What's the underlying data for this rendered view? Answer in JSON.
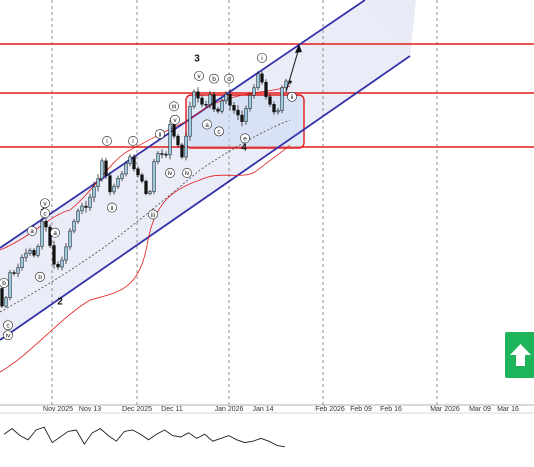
{
  "chart_data": {
    "type": "candlestick",
    "x_tick_labels": [
      "Nov 2025",
      "Nov 13",
      "Dec 2025",
      "Dec 11",
      "Jan 2026",
      "Jan 14",
      "Feb 2026",
      "Feb 09",
      "Feb 16",
      "Mar 2026",
      "Mar 09",
      "Mar 16"
    ],
    "major_wave_labels": [
      {
        "text": "1",
        "bar": 43
      },
      {
        "text": "2",
        "bar": 60
      },
      {
        "text": "3",
        "bar": 197
      },
      {
        "text": "4",
        "bar": 244
      }
    ],
    "sub_wave_labels": [
      {
        "text": "v",
        "bar": 45,
        "pos": "top"
      },
      {
        "text": "c",
        "bar": 45,
        "pos": "top2"
      },
      {
        "text": "a",
        "bar": 32,
        "pos": "top"
      },
      {
        "text": "b",
        "bar": 4,
        "pos": "top"
      },
      {
        "text": "b",
        "bar": 40,
        "pos": "bottom"
      },
      {
        "text": "c",
        "bar": 8,
        "pos": "bottom"
      },
      {
        "text": "iv",
        "bar": 8,
        "pos": "bottom2"
      },
      {
        "text": "a",
        "bar": 55,
        "pos": "top"
      },
      {
        "text": "i",
        "bar": 107,
        "pos": "top"
      },
      {
        "text": "ii",
        "bar": 112,
        "pos": "bottom"
      },
      {
        "text": "i",
        "bar": 133,
        "pos": "top"
      },
      {
        "text": "iii",
        "bar": 153,
        "pos": "bottom"
      },
      {
        "text": "ii",
        "bar": 160,
        "pos": "top"
      },
      {
        "text": "iii",
        "bar": 174,
        "pos": "top"
      },
      {
        "text": "v",
        "bar": 175,
        "pos": "top2"
      },
      {
        "text": "iv",
        "bar": 170,
        "pos": "bottom"
      },
      {
        "text": "iv",
        "bar": 187,
        "pos": "bottom"
      },
      {
        "text": "v",
        "bar": 199,
        "pos": "top"
      },
      {
        "text": "b",
        "bar": 214,
        "pos": "top"
      },
      {
        "text": "d",
        "bar": 229,
        "pos": "top"
      },
      {
        "text": "a",
        "bar": 207,
        "pos": "bottom"
      },
      {
        "text": "c",
        "bar": 219,
        "pos": "bottom"
      },
      {
        "text": "e",
        "bar": 245,
        "pos": "bottom"
      },
      {
        "text": "i",
        "bar": 262,
        "pos": "top"
      },
      {
        "text": "ii",
        "bar": 292,
        "pos": "bottom"
      }
    ],
    "candles": [
      {
        "o": 1500.0,
        "h": 1508.0,
        "l": 1490.0,
        "c": 1495.0
      },
      {
        "o": 1495.0,
        "h": 1502.0,
        "l": 1484.0,
        "c": 1488.0
      },
      {
        "o": 1488.0,
        "h": 1513.0,
        "l": 1485.0,
        "c": 1510.0
      },
      {
        "o": 1510.0,
        "h": 1530.0,
        "l": 1505.0,
        "c": 1522.0
      },
      {
        "o": 1522.0,
        "h": 1532.0,
        "l": 1490.0,
        "c": 1495.0
      },
      {
        "o": 1495.0,
        "h": 1500.0,
        "l": 1470.0,
        "c": 1476.0
      },
      {
        "o": 1476.0,
        "h": 1520.0,
        "l": 1473.0,
        "c": 1514.0
      },
      {
        "o": 1514.0,
        "h": 1535.0,
        "l": 1508.0,
        "c": 1528.0
      },
      {
        "o": 1528.0,
        "h": 1544.0,
        "l": 1520.0,
        "c": 1538.0
      },
      {
        "o": 1538.0,
        "h": 1552.0,
        "l": 1530.0,
        "c": 1546.0
      },
      {
        "o": 1546.0,
        "h": 1560.0,
        "l": 1525.0,
        "c": 1530.0
      },
      {
        "o": 1530.0,
        "h": 1575.0,
        "l": 1528.0,
        "c": 1570.0
      },
      {
        "o": 1570.0,
        "h": 1586.0,
        "l": 1560.0,
        "c": 1580.0
      },
      {
        "o": 1580.0,
        "h": 1588.0,
        "l": 1540.0,
        "c": 1546.0
      },
      {
        "o": 1546.0,
        "h": 1565.0,
        "l": 1535.0,
        "c": 1560.0
      },
      {
        "o": 1560.0,
        "h": 1575.0,
        "l": 1540.0,
        "c": 1548.0
      },
      {
        "o": 1548.0,
        "h": 1585.0,
        "l": 1545.0,
        "c": 1580.0
      },
      {
        "o": 1580.0,
        "h": 1600.0,
        "l": 1570.0,
        "c": 1595.0
      },
      {
        "o": 1595.0,
        "h": 1614.0,
        "l": 1590.0,
        "c": 1608.0
      },
      {
        "o": 1608.0,
        "h": 1625.0,
        "l": 1600.0,
        "c": 1620.0
      },
      {
        "o": 1620.0,
        "h": 1634.0,
        "l": 1600.0,
        "c": 1606.0
      },
      {
        "o": 1606.0,
        "h": 1610.0,
        "l": 1555.0,
        "c": 1560.0
      },
      {
        "o": 1560.0,
        "h": 1570.0,
        "l": 1535.0,
        "c": 1542.0
      },
      {
        "o": 1542.0,
        "h": 1590.0,
        "l": 1538.0,
        "c": 1584.0
      },
      {
        "o": 1584.0,
        "h": 1628.0,
        "l": 1580.0,
        "c": 1622.0
      },
      {
        "o": 1622.0,
        "h": 1650.0,
        "l": 1618.0,
        "c": 1645.0
      },
      {
        "o": 1645.0,
        "h": 1672.0,
        "l": 1640.0,
        "c": 1666.0
      },
      {
        "o": 1666.0,
        "h": 1696.0,
        "l": 1660.0,
        "c": 1690.0
      },
      {
        "o": 1690.0,
        "h": 1708.0,
        "l": 1680.0,
        "c": 1700.0
      },
      {
        "o": 1700.0,
        "h": 1718.0,
        "l": 1690.0,
        "c": 1710.0
      },
      {
        "o": 1710.0,
        "h": 1730.0,
        "l": 1700.0,
        "c": 1722.0
      },
      {
        "o": 1722.0,
        "h": 1745.0,
        "l": 1718.0,
        "c": 1740.0
      },
      {
        "o": 1740.0,
        "h": 1760.0,
        "l": 1730.0,
        "c": 1754.0
      },
      {
        "o": 1754.0,
        "h": 1772.0,
        "l": 1745.0,
        "c": 1766.0
      },
      {
        "o": 1766.0,
        "h": 1782.0,
        "l": 1755.0,
        "c": 1778.0
      },
      {
        "o": 1778.0,
        "h": 1792.0,
        "l": 1770.0,
        "c": 1786.0
      }
    ],
    "ma_label": "",
    "horizontal_lines_note": "",
    "oscillator_values": [
      0.2,
      0.6,
      0.1,
      -0.2,
      0.5,
      0.7,
      -0.4,
      0.0,
      0.4,
      0.5,
      -0.5,
      0.3,
      0.6,
      0.1,
      -0.3,
      0.4,
      0.5,
      0.2,
      -0.2,
      0.2,
      0.5,
      0.1,
      0.0,
      0.3,
      -0.1,
      0.2,
      -0.3,
      -0.1,
      0.1,
      -0.2,
      -0.4,
      -0.3,
      -0.1,
      -0.3,
      -0.6,
      -0.7
    ]
  },
  "ui": {
    "up_button_icon": "up-arrow-icon",
    "accent_green": "#1db45a",
    "channel_color": "#3333aa",
    "level_color": "#e41b1b",
    "bullish_color": "#9bcbe2",
    "bearish_color": "#111111"
  }
}
